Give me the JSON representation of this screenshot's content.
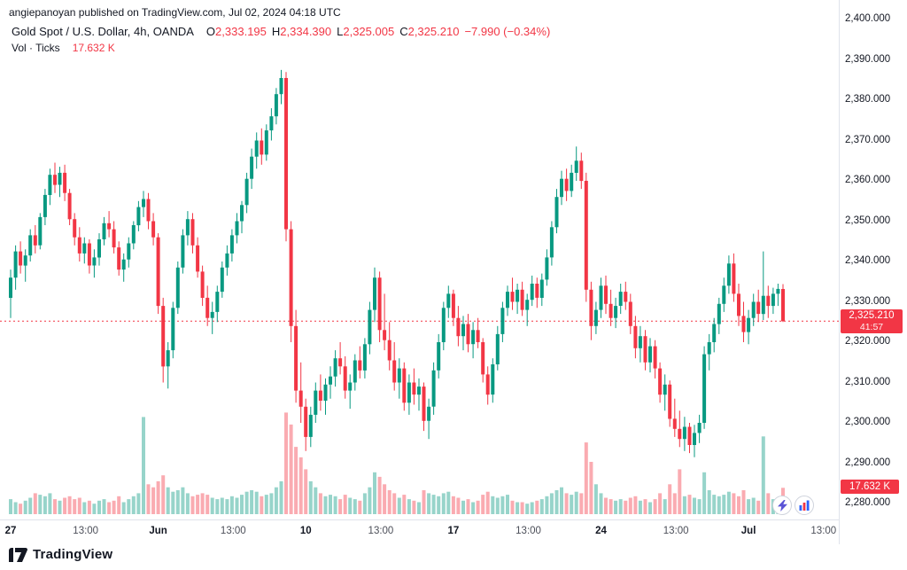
{
  "attribution": "angiepanoyan published on TradingView.com, Jul 02, 2024 04:18 UTC",
  "header": {
    "symbol_title": "Gold Spot / U.S. Dollar, 4h, OANDA",
    "ohlc": {
      "open_label": "O",
      "open": "2,333.195",
      "high_label": "H",
      "high": "2,334.390",
      "low_label": "L",
      "low": "2,325.005",
      "close_label": "C",
      "close": "2,325.210",
      "change": "−7.990 (−0.34%)"
    },
    "volume_row": {
      "label": "Vol · Ticks",
      "value": "17.632 K"
    }
  },
  "price_label": {
    "value": "2,325.210",
    "countdown": "41:57"
  },
  "volume_label": "17.632 K",
  "footer": {
    "logo_text": "TradingView"
  },
  "colors": {
    "up": "#089981",
    "down": "#F23645",
    "vol_up": "rgba(8,153,129,0.42)",
    "vol_down": "rgba(242,54,69,0.42)",
    "axis_line": "#e0e3eb",
    "badge": "#F23645"
  },
  "chart_data": {
    "type": "candlestick",
    "title": "Gold Spot / U.S. Dollar, 4h, OANDA",
    "symbol": "Gold Spot / U.S. Dollar",
    "interval": "4h",
    "exchange": "OANDA",
    "last_ohlc": {
      "open": 2333.195,
      "high": 2334.39,
      "low": 2325.005,
      "close": 2325.21,
      "change": -7.99,
      "change_pct": -0.34
    },
    "current_price": 2325.21,
    "current_volume_k": 17.632,
    "y_axis": {
      "range": [
        2280,
        2400
      ],
      "ticks": [
        2400,
        2390,
        2380,
        2370,
        2360,
        2350,
        2340,
        2330,
        2320,
        2310,
        2300,
        2290,
        2280
      ],
      "format_decimals": 3
    },
    "volume_axis": {
      "max_k": 70
    },
    "x_axis": {
      "ticks": [
        {
          "i": 0,
          "label": "27"
        },
        {
          "i": 15.25,
          "label": "13:00"
        },
        {
          "i": 30,
          "label": "Jun"
        },
        {
          "i": 45.25,
          "label": "13:00"
        },
        {
          "i": 60,
          "label": "10"
        },
        {
          "i": 75.25,
          "label": "13:00"
        },
        {
          "i": 90,
          "label": "17"
        },
        {
          "i": 105.25,
          "label": "13:00"
        },
        {
          "i": 120,
          "label": "24"
        },
        {
          "i": 135.25,
          "label": "13:00"
        },
        {
          "i": 150,
          "label": "Jul"
        },
        {
          "i": 165.25,
          "label": "13:00"
        },
        {
          "i": 180.5,
          "label": "13:00"
        }
      ]
    },
    "candles": [
      [
        2331,
        2338,
        2326,
        2336,
        10
      ],
      [
        2336,
        2344,
        2333,
        2342.5,
        8
      ],
      [
        2342.5,
        2345,
        2337,
        2339,
        7
      ],
      [
        2339,
        2343,
        2335,
        2341.5,
        9
      ],
      [
        2341.5,
        2348,
        2340,
        2346.5,
        11
      ],
      [
        2346.5,
        2349,
        2342,
        2344,
        14
      ],
      [
        2344,
        2352,
        2343,
        2351,
        13
      ],
      [
        2351,
        2358,
        2349,
        2356.5,
        12
      ],
      [
        2356.5,
        2363,
        2354,
        2361.5,
        14
      ],
      [
        2361.5,
        2364.5,
        2357,
        2359,
        10
      ],
      [
        2359,
        2363.5,
        2356,
        2362,
        9
      ],
      [
        2362,
        2364,
        2355,
        2357,
        11
      ],
      [
        2357,
        2358,
        2349,
        2350.5,
        12
      ],
      [
        2350.5,
        2352,
        2344,
        2346,
        10
      ],
      [
        2346,
        2348.5,
        2340,
        2342,
        11
      ],
      [
        2342,
        2346,
        2339.5,
        2344.5,
        8
      ],
      [
        2344.5,
        2345.5,
        2337,
        2339,
        9
      ],
      [
        2339,
        2343,
        2336,
        2341,
        7
      ],
      [
        2341,
        2347,
        2339,
        2345.5,
        9
      ],
      [
        2345.5,
        2351,
        2344,
        2349.5,
        10
      ],
      [
        2349.5,
        2352.5,
        2346,
        2348,
        8
      ],
      [
        2348,
        2350,
        2342,
        2343.5,
        9
      ],
      [
        2343.5,
        2345,
        2336.5,
        2338,
        12
      ],
      [
        2338,
        2342,
        2335,
        2340.5,
        8
      ],
      [
        2340.5,
        2346,
        2338.5,
        2344.5,
        10
      ],
      [
        2344.5,
        2350,
        2343,
        2349,
        12
      ],
      [
        2349,
        2355,
        2347.5,
        2353.5,
        14
      ],
      [
        2353.5,
        2357.5,
        2351,
        2355.5,
        65
      ],
      [
        2355.5,
        2357,
        2348,
        2350,
        20
      ],
      [
        2350,
        2352,
        2344,
        2346,
        18
      ],
      [
        2346,
        2347,
        2327,
        2329,
        22
      ],
      [
        2329,
        2331,
        2310,
        2314,
        26
      ],
      [
        2314,
        2320,
        2308.5,
        2318,
        18
      ],
      [
        2318,
        2330,
        2316,
        2328.5,
        15
      ],
      [
        2328.5,
        2340,
        2327,
        2338.5,
        16
      ],
      [
        2338.5,
        2348,
        2337,
        2346.5,
        18
      ],
      [
        2346.5,
        2352.5,
        2344,
        2350.5,
        14
      ],
      [
        2350.5,
        2352,
        2342,
        2344,
        12
      ],
      [
        2344,
        2346,
        2336,
        2337.5,
        13
      ],
      [
        2337.5,
        2339,
        2329,
        2331,
        14
      ],
      [
        2331,
        2334,
        2324,
        2326,
        13
      ],
      [
        2326,
        2330,
        2322,
        2327.5,
        11
      ],
      [
        2327.5,
        2334,
        2325,
        2332.5,
        10
      ],
      [
        2332.5,
        2340,
        2331,
        2338.5,
        11
      ],
      [
        2338.5,
        2344,
        2336.5,
        2342,
        10
      ],
      [
        2342,
        2348,
        2340,
        2346.5,
        12
      ],
      [
        2346.5,
        2352,
        2344.5,
        2350,
        11
      ],
      [
        2350,
        2355,
        2347,
        2354,
        13
      ],
      [
        2354,
        2362,
        2352,
        2360.5,
        15
      ],
      [
        2360.5,
        2368,
        2358,
        2366,
        16
      ],
      [
        2366,
        2372,
        2363,
        2370,
        15
      ],
      [
        2370,
        2373,
        2364,
        2366.5,
        12
      ],
      [
        2366.5,
        2374,
        2365,
        2372.5,
        13
      ],
      [
        2372.5,
        2378,
        2370,
        2376,
        14
      ],
      [
        2376,
        2383,
        2374,
        2381.5,
        18
      ],
      [
        2381.5,
        2387.5,
        2379,
        2385.5,
        22
      ],
      [
        2385.5,
        2387,
        2345,
        2348,
        68
      ],
      [
        2348,
        2350,
        2320,
        2324,
        60
      ],
      [
        2324,
        2328,
        2305,
        2308,
        45
      ],
      [
        2308,
        2315,
        2300,
        2304,
        38
      ],
      [
        2304,
        2306,
        2293,
        2296.5,
        30
      ],
      [
        2296.5,
        2304,
        2294,
        2302,
        22
      ],
      [
        2302,
        2310,
        2300,
        2308,
        18
      ],
      [
        2308,
        2312,
        2303,
        2305.5,
        14
      ],
      [
        2305.5,
        2311,
        2302,
        2309.5,
        12
      ],
      [
        2309.5,
        2314,
        2306,
        2311.5,
        13
      ],
      [
        2311.5,
        2318,
        2309,
        2316,
        12
      ],
      [
        2316,
        2320,
        2312,
        2314,
        10
      ],
      [
        2314,
        2316.5,
        2306,
        2308,
        13
      ],
      [
        2308,
        2312,
        2303.5,
        2310,
        11
      ],
      [
        2310,
        2317,
        2308,
        2315.5,
        10
      ],
      [
        2315.5,
        2319,
        2311,
        2313,
        9
      ],
      [
        2313,
        2321,
        2311,
        2319.5,
        14
      ],
      [
        2319.5,
        2330,
        2317,
        2328,
        18
      ],
      [
        2328,
        2338.5,
        2325,
        2336,
        28
      ],
      [
        2336,
        2337.5,
        2320,
        2323,
        25
      ],
      [
        2323,
        2332,
        2318,
        2320.5,
        20
      ],
      [
        2320.5,
        2325,
        2313,
        2315.5,
        16
      ],
      [
        2315.5,
        2320,
        2308,
        2310,
        14
      ],
      [
        2310,
        2316,
        2306,
        2313.5,
        11
      ],
      [
        2313.5,
        2315,
        2303,
        2305,
        13
      ],
      [
        2305,
        2312,
        2302,
        2310,
        10
      ],
      [
        2310,
        2313.5,
        2304.5,
        2307,
        9
      ],
      [
        2307,
        2311,
        2303,
        2309,
        8
      ],
      [
        2309,
        2310,
        2298,
        2300.5,
        16
      ],
      [
        2300.5,
        2306,
        2296,
        2304,
        14
      ],
      [
        2304,
        2315,
        2302,
        2313,
        13
      ],
      [
        2313,
        2322,
        2311,
        2320,
        12
      ],
      [
        2320,
        2330,
        2318,
        2328.5,
        14
      ],
      [
        2328.5,
        2334,
        2326,
        2332,
        15
      ],
      [
        2332,
        2333,
        2324,
        2326,
        12
      ],
      [
        2326,
        2329,
        2319,
        2321.5,
        11
      ],
      [
        2321.5,
        2326.5,
        2318,
        2324.5,
        9
      ],
      [
        2324.5,
        2327,
        2317.5,
        2319.5,
        10
      ],
      [
        2319.5,
        2325,
        2316,
        2323,
        8
      ],
      [
        2323,
        2326,
        2318.5,
        2320,
        9
      ],
      [
        2320,
        2321,
        2310,
        2312,
        13
      ],
      [
        2312,
        2314,
        2304.5,
        2307,
        15
      ],
      [
        2307,
        2316,
        2305,
        2314.5,
        12
      ],
      [
        2314.5,
        2324,
        2313,
        2322,
        11
      ],
      [
        2322,
        2330,
        2320,
        2328.5,
        12
      ],
      [
        2328.5,
        2334,
        2326.5,
        2332.5,
        13
      ],
      [
        2332.5,
        2336,
        2328,
        2330,
        9
      ],
      [
        2330,
        2334.5,
        2327,
        2333,
        8
      ],
      [
        2333,
        2335,
        2326.5,
        2328,
        8
      ],
      [
        2328,
        2332,
        2324,
        2330.5,
        7
      ],
      [
        2330.5,
        2336.5,
        2329,
        2334.5,
        8
      ],
      [
        2334.5,
        2336,
        2328.5,
        2331,
        9
      ],
      [
        2331,
        2337,
        2329,
        2335.5,
        10
      ],
      [
        2335.5,
        2343,
        2334,
        2341,
        12
      ],
      [
        2341,
        2350,
        2339,
        2348.5,
        14
      ],
      [
        2348.5,
        2358,
        2347,
        2356,
        16
      ],
      [
        2356,
        2362.5,
        2354,
        2360.5,
        18
      ],
      [
        2360.5,
        2363,
        2355,
        2357.5,
        14
      ],
      [
        2357.5,
        2364,
        2356,
        2362,
        13
      ],
      [
        2362,
        2368.5,
        2360,
        2365,
        15
      ],
      [
        2365,
        2367,
        2358,
        2360,
        14
      ],
      [
        2360,
        2362,
        2330,
        2333,
        48
      ],
      [
        2333,
        2335,
        2320.5,
        2324,
        35
      ],
      [
        2324,
        2330,
        2322,
        2328,
        20
      ],
      [
        2328,
        2336,
        2326,
        2334,
        14
      ],
      [
        2334,
        2336.5,
        2327,
        2329.5,
        11
      ],
      [
        2329.5,
        2333,
        2324,
        2326,
        10
      ],
      [
        2326,
        2331,
        2323.5,
        2329,
        9
      ],
      [
        2329,
        2334.5,
        2327,
        2332.5,
        10
      ],
      [
        2332.5,
        2335,
        2328,
        2330,
        9
      ],
      [
        2330,
        2332,
        2322,
        2324,
        11
      ],
      [
        2324,
        2326.5,
        2316,
        2318.5,
        12
      ],
      [
        2318.5,
        2324,
        2315,
        2321.5,
        9
      ],
      [
        2321.5,
        2323,
        2313,
        2315,
        10
      ],
      [
        2315,
        2321,
        2312.5,
        2319,
        8
      ],
      [
        2319,
        2320.5,
        2311,
        2313.5,
        10
      ],
      [
        2313.5,
        2315,
        2305,
        2307,
        14
      ],
      [
        2307,
        2312,
        2303,
        2309.5,
        10
      ],
      [
        2309.5,
        2310.5,
        2299,
        2301,
        20
      ],
      [
        2301,
        2306,
        2296.5,
        2298.5,
        14
      ],
      [
        2298.5,
        2303,
        2294,
        2296,
        30
      ],
      [
        2296,
        2301.5,
        2293,
        2299,
        12
      ],
      [
        2299,
        2300,
        2292.5,
        2294.5,
        13
      ],
      [
        2294.5,
        2299.5,
        2291.5,
        2297.5,
        11
      ],
      [
        2297.5,
        2302,
        2295,
        2300,
        10
      ],
      [
        2300,
        2319,
        2298.5,
        2317,
        28
      ],
      [
        2317,
        2322,
        2313,
        2320,
        16
      ],
      [
        2320,
        2326,
        2317.5,
        2324.5,
        13
      ],
      [
        2324.5,
        2331,
        2322,
        2329.5,
        12
      ],
      [
        2329.5,
        2336,
        2327.5,
        2334,
        13
      ],
      [
        2334,
        2341.5,
        2332,
        2339.5,
        15
      ],
      [
        2339.5,
        2342,
        2330,
        2332,
        14
      ],
      [
        2332,
        2334.5,
        2324,
        2326.5,
        12
      ],
      [
        2326.5,
        2330,
        2320,
        2322.5,
        16
      ],
      [
        2322.5,
        2328,
        2319.5,
        2326,
        10
      ],
      [
        2326,
        2332,
        2324,
        2330,
        11
      ],
      [
        2330,
        2333,
        2325,
        2327,
        9
      ],
      [
        2327,
        2342.5,
        2325.5,
        2331.5,
        52
      ],
      [
        2331.5,
        2334,
        2326,
        2329,
        14
      ],
      [
        2329,
        2333.5,
        2327,
        2332,
        10
      ],
      [
        2332,
        2334.5,
        2329,
        2333.2,
        8
      ],
      [
        2333.195,
        2334.39,
        2325.005,
        2325.21,
        17.632
      ]
    ]
  }
}
